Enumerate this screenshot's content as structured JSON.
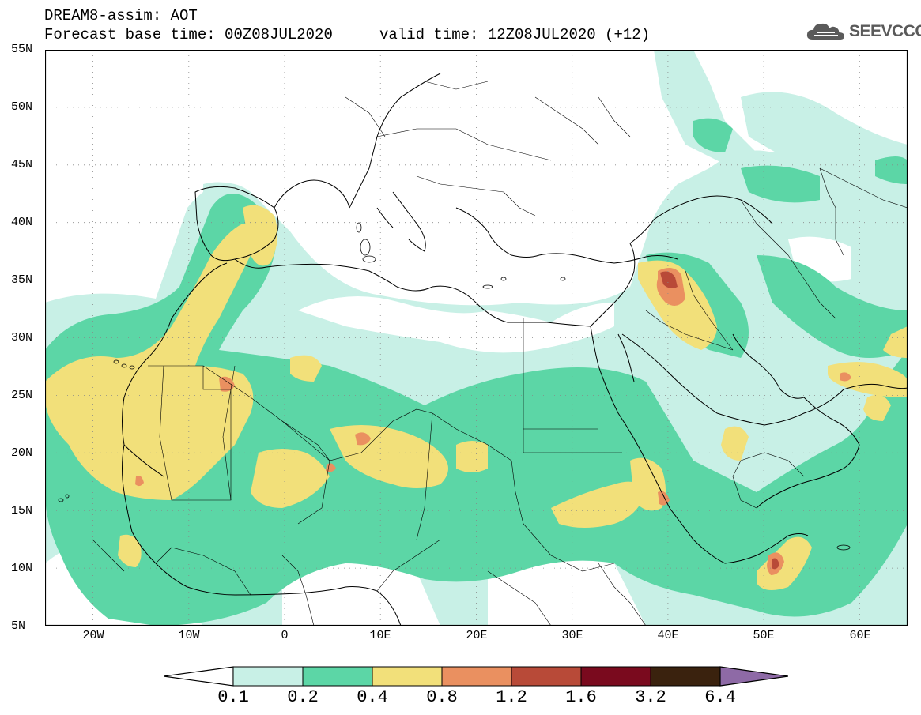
{
  "header": {
    "title": "DREAM8-assim: AOT",
    "forecast": "Forecast base time: 00Z08JUL2020",
    "valid": "valid time: 12Z08JUL2020 (+12)"
  },
  "logo": {
    "text": "SEEVCCC",
    "icon": "cloud-icon"
  },
  "map": {
    "lon_range": [
      -25,
      65
    ],
    "lat_range": [
      5,
      55
    ],
    "grid": "dotted",
    "lat_labels": [
      "55N",
      "50N",
      "45N",
      "40N",
      "35N",
      "30N",
      "25N",
      "20N",
      "15N",
      "10N",
      "5N"
    ],
    "lon_labels": [
      "20W",
      "10W",
      "0",
      "10E",
      "20E",
      "30E",
      "40E",
      "50E",
      "60E"
    ]
  },
  "legend": {
    "labels": [
      "0.1",
      "0.2",
      "0.4",
      "0.8",
      "1.2",
      "1.6",
      "3.2",
      "6.4"
    ],
    "colors": [
      "#ffffff",
      "#c8f0e6",
      "#5cd6a6",
      "#f2e07a",
      "#ea9060",
      "#b84a38",
      "#7a0a1e",
      "#3a220e",
      "#8e6aa6"
    ]
  }
}
